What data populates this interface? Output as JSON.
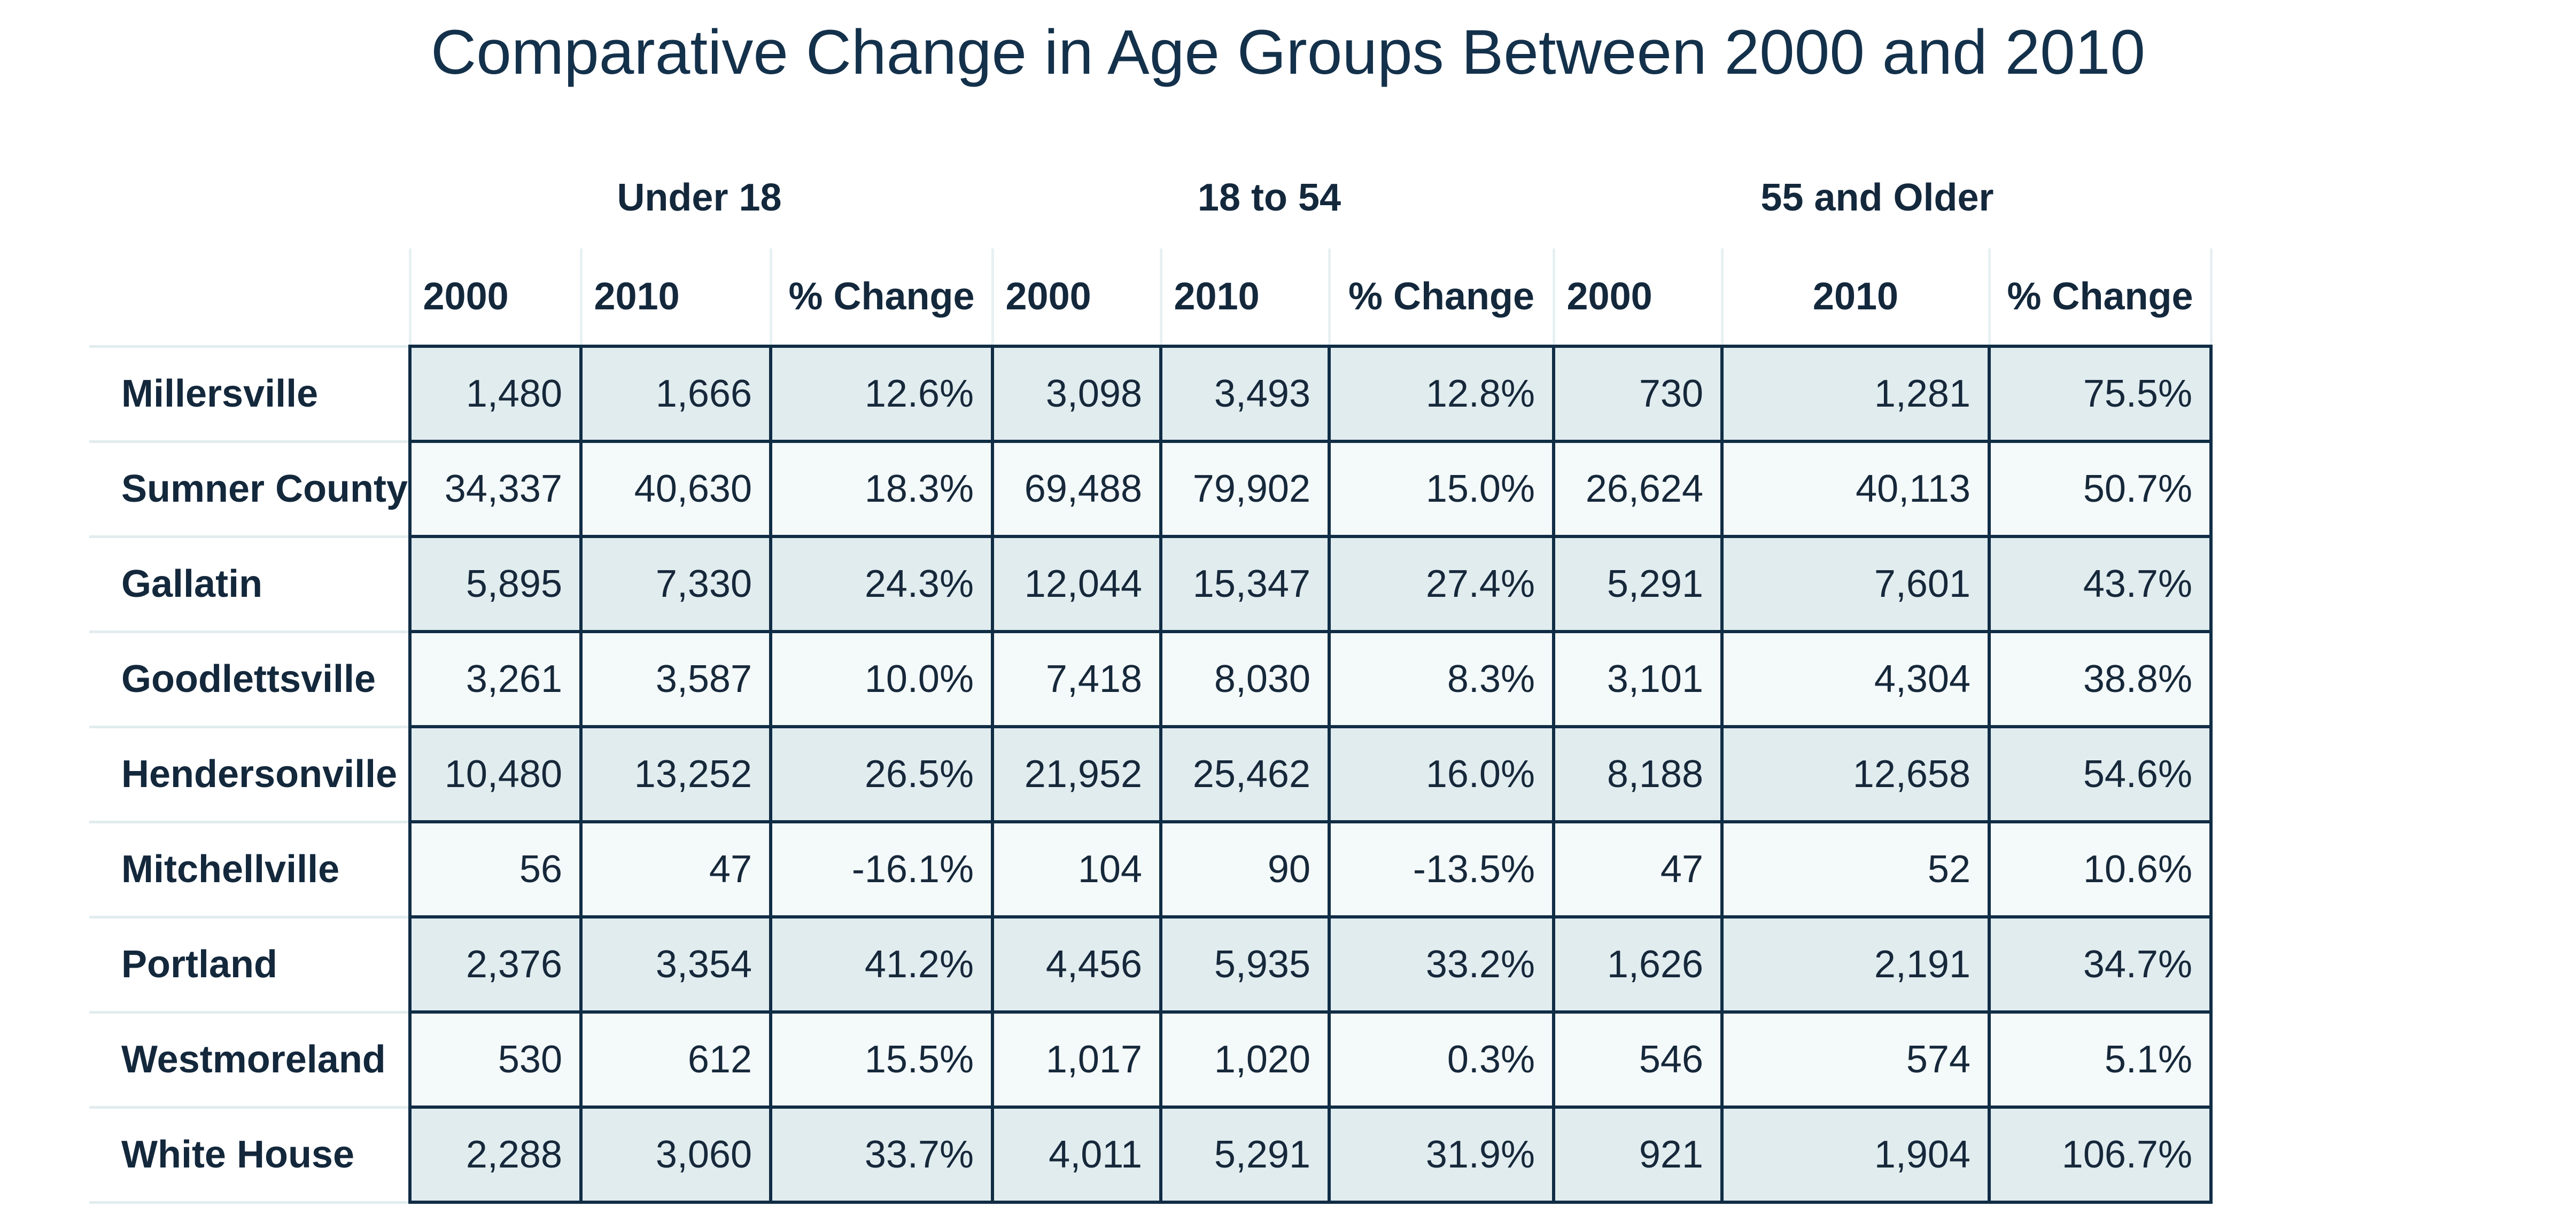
{
  "chart_data": {
    "type": "table",
    "title": "Comparative Change in Age Groups Between 2000 and 2010",
    "groups": [
      "Under 18",
      "18 to 54",
      "55 and Older"
    ],
    "columns": [
      "2000",
      "2010",
      "% Change",
      "2000",
      "2010",
      "% Change",
      "2000",
      "2010",
      "% Change"
    ],
    "rows": [
      {
        "name": "Millersville",
        "values": [
          "1,480",
          "1,666",
          "12.6%",
          "3,098",
          "3,493",
          "12.8%",
          "730",
          "1,281",
          "75.5%"
        ]
      },
      {
        "name": "Sumner County",
        "values": [
          "34,337",
          "40,630",
          "18.3%",
          "69,488",
          "79,902",
          "15.0%",
          "26,624",
          "40,113",
          "50.7%"
        ]
      },
      {
        "name": "Gallatin",
        "values": [
          "5,895",
          "7,330",
          "24.3%",
          "12,044",
          "15,347",
          "27.4%",
          "5,291",
          "7,601",
          "43.7%"
        ]
      },
      {
        "name": "Goodlettsville",
        "values": [
          "3,261",
          "3,587",
          "10.0%",
          "7,418",
          "8,030",
          "8.3%",
          "3,101",
          "4,304",
          "38.8%"
        ]
      },
      {
        "name": "Hendersonville",
        "values": [
          "10,480",
          "13,252",
          "26.5%",
          "21,952",
          "25,462",
          "16.0%",
          "8,188",
          "12,658",
          "54.6%"
        ]
      },
      {
        "name": "Mitchellville",
        "values": [
          "56",
          "47",
          "-16.1%",
          "104",
          "90",
          "-13.5%",
          "47",
          "52",
          "10.6%"
        ]
      },
      {
        "name": "Portland",
        "values": [
          "2,376",
          "3,354",
          "41.2%",
          "4,456",
          "5,935",
          "33.2%",
          "1,626",
          "2,191",
          "34.7%"
        ]
      },
      {
        "name": "Westmoreland",
        "values": [
          "530",
          "612",
          "15.5%",
          "1,017",
          "1,020",
          "0.3%",
          "546",
          "574",
          "5.1%"
        ]
      },
      {
        "name": "White House",
        "values": [
          "2,288",
          "3,060",
          "33.7%",
          "4,011",
          "5,291",
          "31.9%",
          "921",
          "1,904",
          "106.7%"
        ]
      }
    ]
  }
}
